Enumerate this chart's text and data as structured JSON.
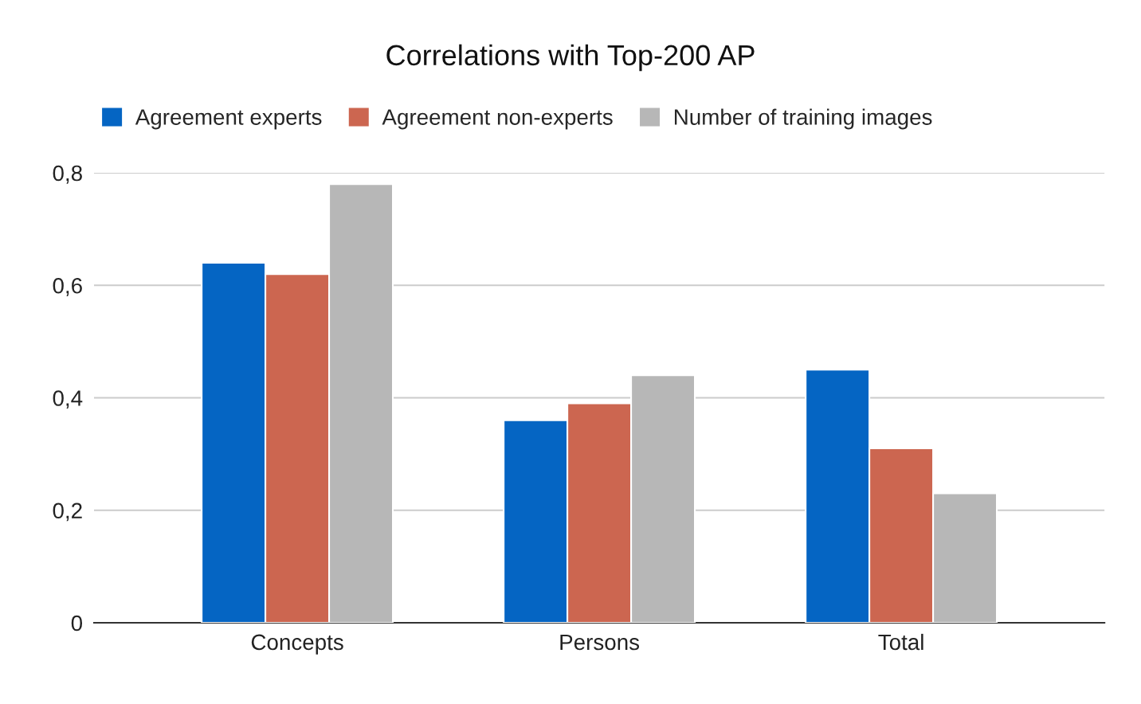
{
  "chart_data": {
    "type": "bar",
    "title": "Correlations with Top-200 AP",
    "categories": [
      "Concepts",
      "Persons",
      "Total"
    ],
    "series": [
      {
        "name": "Agreement experts",
        "color": "#0565c3",
        "values": [
          0.64,
          0.36,
          0.45
        ]
      },
      {
        "name": "Agreement non-experts",
        "color": "#cc6650",
        "values": [
          0.62,
          0.39,
          0.31
        ]
      },
      {
        "name": "Number of training images",
        "color": "#b7b7b7",
        "values": [
          0.78,
          0.44,
          0.23
        ]
      }
    ],
    "ylim": [
      0,
      0.8
    ],
    "yticks": [
      0,
      {
        "value": 0.2,
        "label": "0,2"
      },
      {
        "value": 0.4,
        "label": "0,4"
      },
      {
        "value": 0.6,
        "label": "0,6"
      },
      {
        "value": 0.8,
        "label": "0,8"
      }
    ],
    "grid": "y",
    "legend": "top"
  }
}
